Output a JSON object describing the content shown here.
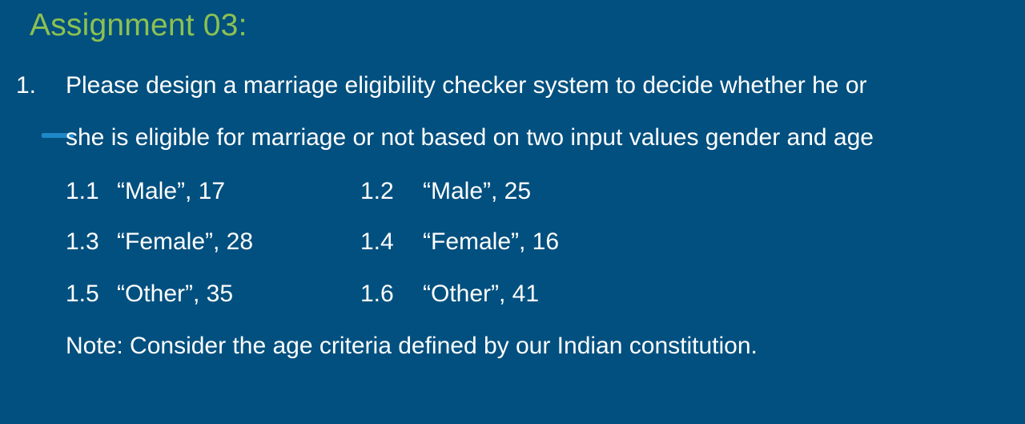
{
  "slide": {
    "title": "Assignment 03:"
  },
  "question": {
    "number": "1.",
    "line1": "Please design a marriage eligibility checker system to decide whether he or",
    "line2": "she is eligible for marriage or not based on two input values gender and age"
  },
  "cases": [
    {
      "number": "1.1",
      "value": "“Male”, 17"
    },
    {
      "number": "1.2",
      "value": "“Male”, 25"
    },
    {
      "number": "1.3",
      "value": "“Female”, 28"
    },
    {
      "number": "1.4",
      "value": "“Female”, 16"
    },
    {
      "number": "1.5",
      "value": "“Other”, 35"
    },
    {
      "number": "1.6",
      "value": "“Other”,  41"
    }
  ],
  "note": "Note: Consider the age criteria defined by our Indian constitution.",
  "colors": {
    "background": "#02507f",
    "title": "#8cc152",
    "text": "#ffffff",
    "accent": "#1e88c8"
  }
}
